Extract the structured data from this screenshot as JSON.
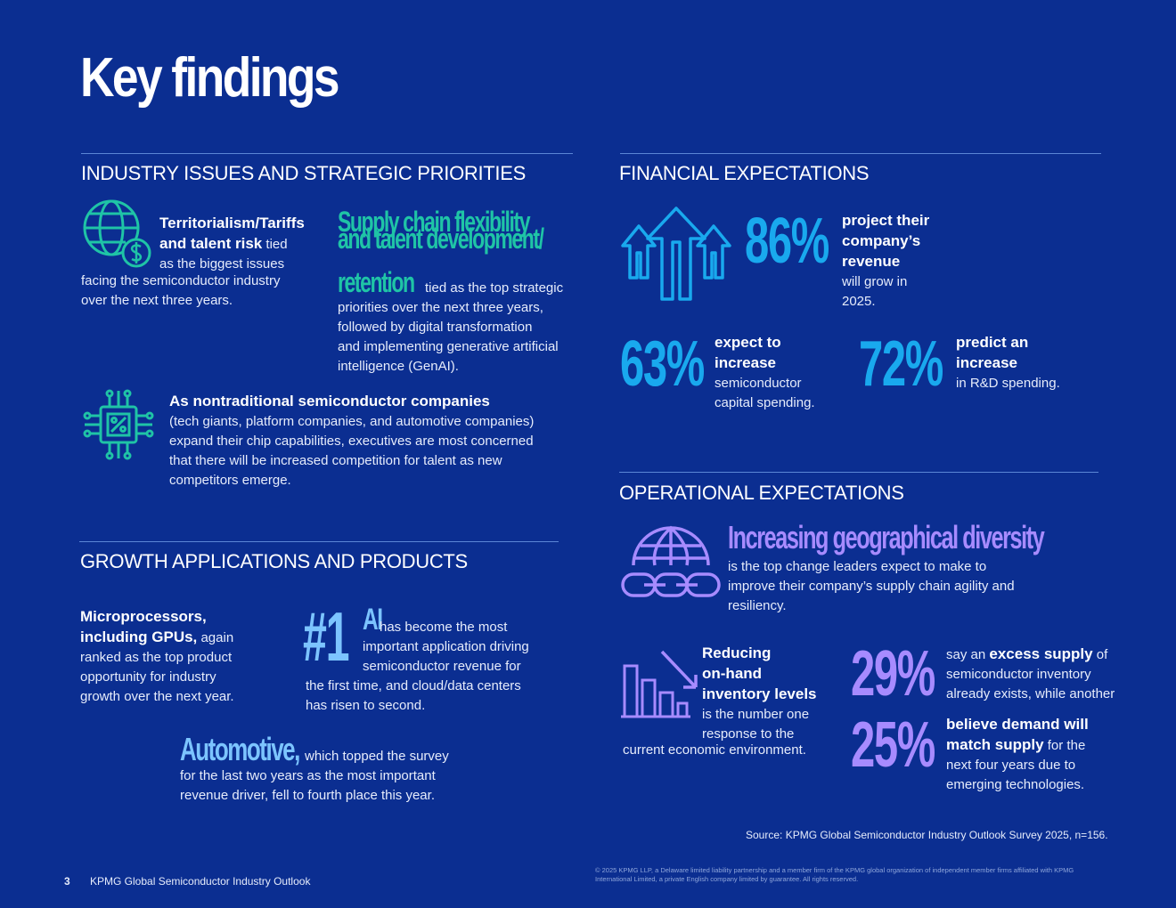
{
  "page": {
    "title": "Key findings",
    "page_number": "3",
    "footer_title": "KPMG Global Semiconductor Industry Outlook",
    "source": "Source: KPMG Global Semiconductor Industry Outlook Survey 2025, n=156.",
    "legal_1": "© 2025 KPMG LLP, a Delaware limited liability partnership and a member firm of the KPMG global organization of independent member firms affiliated with KPMG",
    "legal_2": "International Limited, a private English company limited by guarantee. All rights reserved."
  },
  "industry": {
    "heading": "INDUSTRY ISSUES AND STRATEGIC PRIORITIES",
    "tariffs": {
      "bold_1": "Territorialism/Tariffs",
      "bold_2": "and talent risk",
      "text_1": " tied",
      "text_2": "as the biggest issues",
      "text_3": "facing the semiconductor industry",
      "text_4": "over the next three years."
    },
    "supply": {
      "big_1": "Supply chain flexibility",
      "big_2": "and talent development/",
      "big_3": "retention",
      "text_1": " tied as the top strategic",
      "text_2": "priorities over the next three years,",
      "text_3": "followed by digital transformation",
      "text_4": "and implementing generative artificial",
      "text_5": "intelligence (GenAI)."
    },
    "nontraditional": {
      "bold": "As nontraditional semiconductor companies",
      "text_1": "(tech giants, platform companies, and automotive companies)",
      "text_2": "expand their chip capabilities, executives are most concerned",
      "text_3": "that there will be increased competition for talent as new",
      "text_4": "competitors emerge."
    }
  },
  "growth": {
    "heading": "GROWTH APPLICATIONS AND PRODUCTS",
    "micro": {
      "bold_1": "Microprocessors,",
      "bold_2": "including GPUs,",
      "text_1": " again",
      "text_2": "ranked as the top product",
      "text_3": "opportunity for industry",
      "text_4": "growth over the next year."
    },
    "ai": {
      "rank": "#1",
      "big": "AI",
      "text_1": " has become the most",
      "text_2": "important application driving",
      "text_3": "semiconductor revenue for",
      "text_4": "the first time, and cloud/data centers",
      "text_5": "has risen to second."
    },
    "auto": {
      "big": "Automotive,",
      "text_1": " which topped the survey",
      "text_2": "for the last two years as the most important",
      "text_3": "revenue driver, fell to fourth place this year."
    }
  },
  "financial": {
    "heading": "FINANCIAL EXPECTATIONS",
    "stat_86": {
      "value": "86%",
      "bold_1": "project their",
      "bold_2": "company’s",
      "bold_3": "revenue",
      "text_1": "will grow in",
      "text_2": "2025."
    },
    "stat_63": {
      "value": "63%",
      "bold_1": "expect to",
      "bold_2": "increase",
      "text_1": "semiconductor",
      "text_2": "capital spending."
    },
    "stat_72": {
      "value": "72%",
      "bold_1": "predict an",
      "bold_2": "increase",
      "text_1": "in R&D spending."
    }
  },
  "operational": {
    "heading": "OPERATIONAL EXPECTATIONS",
    "geo": {
      "big": "Increasing geographical diversity",
      "text_1": "is the top change leaders expect to make to",
      "text_2": "improve their company’s supply chain agility and",
      "text_3": "resiliency."
    },
    "inventory": {
      "bold_1": "Reducing",
      "bold_2": "on-hand",
      "bold_3": "inventory levels",
      "text_1": "is the number one",
      "text_2": "response to the",
      "text_3": "current economic environment."
    },
    "stat_29": {
      "value": "29%",
      "text_1": "say an ",
      "bold": "excess supply",
      "text_2": " of",
      "text_3": "semiconductor inventory",
      "text_4": "already exists, while another"
    },
    "stat_25": {
      "value": "25%",
      "bold_1": "believe demand will",
      "bold_2": "match supply",
      "text_1": " for the",
      "text_2": "next four years due to",
      "text_3": "emerging technologies."
    }
  },
  "colors": {
    "background": "#0b2e91",
    "teal": "#1fc4a6",
    "cyan": "#19a9ee",
    "light_blue": "#7cc4ff",
    "purple": "#a78bff"
  },
  "icons": [
    "globe-dollar-icon",
    "circuit-percent-icon",
    "arrows-up-icon",
    "globe-chain-icon",
    "bar-chart-down-icon"
  ]
}
